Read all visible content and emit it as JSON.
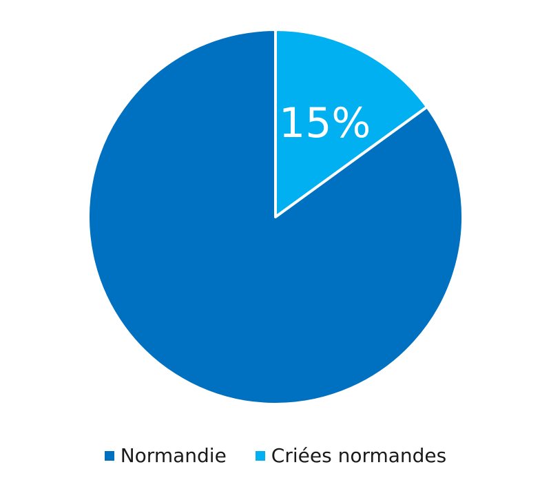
{
  "chart_data": {
    "type": "pie",
    "slices": [
      {
        "name": "Normandie",
        "value": 85,
        "label": "",
        "color": "#0070c0"
      },
      {
        "name": "Criées normandes",
        "value": 15,
        "label": "15%",
        "color": "#00b0f0"
      }
    ],
    "start_angle_deg": 0,
    "direction": "counterclockwise",
    "slice_border_color": "#ffffff",
    "legend_position": "bottom"
  }
}
